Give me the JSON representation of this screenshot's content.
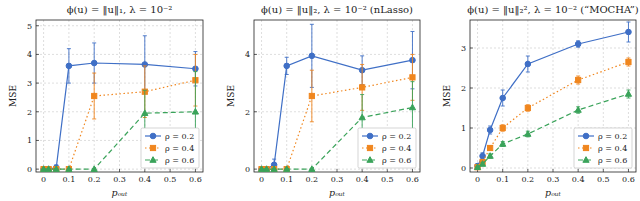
{
  "chart_data": [
    {
      "type": "line",
      "title": "ϕ(u) = ‖u‖₁, λ = 10⁻²",
      "x_label": "pₒᵤₜ",
      "y_label": "MSE",
      "x": [
        0,
        0.02,
        0.05,
        0.1,
        0.2,
        0.4,
        0.6
      ],
      "xlim": [
        -0.03,
        0.63
      ],
      "xticks": [
        0,
        0.1,
        0.2,
        0.3,
        0.4,
        0.5,
        0.6
      ],
      "ylim": [
        -0.1,
        5.2
      ],
      "yticks": [
        0,
        1,
        2,
        3,
        4,
        5
      ],
      "grid": true,
      "legend": "lower right",
      "series": [
        {
          "name": "ρ = 0.2",
          "color": "#3f6fc6",
          "marker": "circle",
          "line_style": "solid",
          "values": [
            0,
            0,
            0.05,
            3.6,
            3.7,
            3.65,
            3.5
          ],
          "errors": [
            0,
            0,
            0.1,
            0.6,
            0.7,
            1.0,
            0.6
          ]
        },
        {
          "name": "ρ = 0.4",
          "color": "#f0861e",
          "marker": "square",
          "line_style": "dotted",
          "values": [
            0,
            0,
            0,
            0,
            2.55,
            2.7,
            3.1
          ],
          "errors": [
            0,
            0,
            0,
            0,
            0.8,
            0.9,
            0.9
          ]
        },
        {
          "name": "ρ = 0.6",
          "color": "#3aa35a",
          "marker": "triangle",
          "line_style": "dashed",
          "values": [
            0,
            0,
            0,
            0,
            0,
            1.95,
            2.0
          ],
          "errors": [
            0,
            0,
            0,
            0,
            0,
            0.8,
            1.4
          ]
        }
      ]
    },
    {
      "type": "line",
      "title": "ϕ(u) = ‖u‖₂, λ = 10⁻² (nLasso)",
      "x_label": "pₒᵤₜ",
      "y_label": "MSE",
      "x": [
        0,
        0.02,
        0.05,
        0.1,
        0.2,
        0.4,
        0.6
      ],
      "xlim": [
        -0.03,
        0.63
      ],
      "xticks": [
        0,
        0.1,
        0.2,
        0.3,
        0.4,
        0.5,
        0.6
      ],
      "ylim": [
        -0.1,
        5.2
      ],
      "yticks": [
        0,
        2,
        4
      ],
      "grid": true,
      "legend": "lower right",
      "series": [
        {
          "name": "ρ = 0.2",
          "color": "#3f6fc6",
          "marker": "circle",
          "line_style": "solid",
          "values": [
            0,
            0,
            0.15,
            3.6,
            3.95,
            3.45,
            3.8
          ],
          "errors": [
            0,
            0,
            0.2,
            0.3,
            1.1,
            0.5,
            1.0
          ]
        },
        {
          "name": "ρ = 0.4",
          "color": "#f0861e",
          "marker": "square",
          "line_style": "dotted",
          "values": [
            0,
            0,
            0,
            0,
            2.55,
            2.85,
            3.2
          ],
          "errors": [
            0,
            0,
            0,
            0,
            0.9,
            0.8,
            0.8
          ]
        },
        {
          "name": "ρ = 0.6",
          "color": "#3aa35a",
          "marker": "triangle",
          "line_style": "dashed",
          "values": [
            0,
            0,
            0,
            0,
            0,
            1.8,
            2.15
          ],
          "errors": [
            0,
            0,
            0,
            0,
            0,
            0.8,
            0.9
          ]
        }
      ]
    },
    {
      "type": "line",
      "title": "ϕ(u) = ‖u‖₂², λ = 10⁻² (“MOCHA”)",
      "x_label": "pₒᵤₜ",
      "y_label": "MSE",
      "x": [
        0,
        0.02,
        0.05,
        0.1,
        0.2,
        0.4,
        0.6
      ],
      "xlim": [
        -0.03,
        0.63
      ],
      "xticks": [
        0,
        0.1,
        0.2,
        0.3,
        0.4,
        0.5,
        0.6
      ],
      "ylim": [
        -0.1,
        3.7
      ],
      "yticks": [
        0,
        1,
        2,
        3
      ],
      "grid": true,
      "legend": "lower right",
      "series": [
        {
          "name": "ρ = 0.2",
          "color": "#3f6fc6",
          "marker": "circle",
          "line_style": "solid",
          "values": [
            0.05,
            0.3,
            0.95,
            1.75,
            2.6,
            3.1,
            3.4
          ],
          "errors": [
            0.05,
            0.08,
            0.1,
            0.2,
            0.2,
            0.08,
            0.25
          ]
        },
        {
          "name": "ρ = 0.4",
          "color": "#f0861e",
          "marker": "square",
          "line_style": "dotted",
          "values": [
            0.02,
            0.15,
            0.5,
            1.0,
            1.5,
            2.2,
            2.65
          ],
          "errors": [
            0.02,
            0.05,
            0.06,
            0.08,
            0.08,
            0.1,
            0.1
          ]
        },
        {
          "name": "ρ = 0.6",
          "color": "#3aa35a",
          "marker": "triangle",
          "line_style": "dashed",
          "values": [
            0.02,
            0.1,
            0.3,
            0.6,
            0.85,
            1.45,
            1.85
          ],
          "errors": [
            0.02,
            0.04,
            0.05,
            0.06,
            0.07,
            0.08,
            0.1
          ]
        }
      ]
    }
  ]
}
